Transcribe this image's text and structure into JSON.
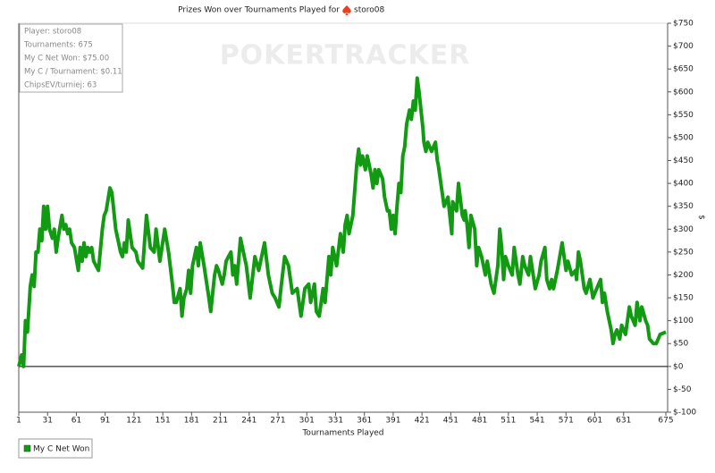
{
  "chart_data": {
    "type": "line",
    "title": "Prizes Won over Tournaments Played for",
    "player": "storo08",
    "watermark": "POKERTRACKER",
    "stats": [
      "Player: storo08",
      "Tournaments: 675",
      "My C Net Won: $75.00",
      "My C / Tournament: $0.11",
      "ChipsEV/turniej: 63"
    ],
    "x_label": "Tournaments Played",
    "y_label": "$",
    "x": [
      1,
      4,
      6,
      8,
      10,
      13,
      15,
      17,
      19,
      21,
      23,
      25,
      27,
      29,
      31,
      33,
      36,
      38,
      40,
      42,
      46,
      48,
      50,
      52,
      54,
      56,
      59,
      63,
      65,
      67,
      69,
      71,
      73,
      75,
      77,
      79,
      84,
      88,
      90,
      92,
      96,
      98,
      102,
      107,
      109,
      111,
      113,
      115,
      119,
      123,
      125,
      130,
      134,
      138,
      142,
      144,
      148,
      153,
      157,
      161,
      163,
      165,
      169,
      171,
      173,
      176,
      178,
      180,
      182,
      184,
      186,
      188,
      190,
      194,
      199,
      201,
      205,
      207,
      209,
      213,
      215,
      217,
      222,
      224,
      226,
      228,
      232,
      236,
      238,
      242,
      247,
      251,
      255,
      257,
      261,
      263,
      265,
      268,
      272,
      274,
      278,
      282,
      286,
      291,
      295,
      299,
      303,
      305,
      309,
      311,
      314,
      318,
      320,
      324,
      326,
      328,
      332,
      336,
      339,
      341,
      343,
      345,
      349,
      353,
      355,
      357,
      359,
      362,
      364,
      366,
      368,
      370,
      372,
      374,
      376,
      380,
      382,
      385,
      387,
      389,
      391,
      393,
      395,
      397,
      399,
      401,
      403,
      405,
      408,
      410,
      412,
      414,
      416,
      418,
      422,
      423,
      425,
      427,
      431,
      435,
      437,
      438,
      444,
      448,
      450,
      452,
      453,
      457,
      459,
      463,
      465,
      466,
      468,
      470,
      472,
      476,
      478,
      480,
      483,
      487,
      489,
      493,
      496,
      500,
      502,
      504,
      506,
      508,
      511,
      515,
      517,
      521,
      523,
      526,
      528,
      532,
      534,
      539,
      543,
      545,
      549,
      551,
      554,
      556,
      558,
      562,
      567,
      571,
      573,
      577,
      581,
      582,
      584,
      586,
      590,
      592,
      596,
      599,
      601,
      605,
      607,
      609,
      611,
      614,
      618,
      620,
      622,
      624,
      627,
      629,
      633,
      637,
      639,
      643,
      645,
      648,
      650,
      654,
      656,
      658,
      662,
      665,
      669,
      675
    ],
    "series": [
      {
        "name": "My C Net Won",
        "color": "#139a13",
        "values": [
          0,
          25,
          0,
          100,
          75,
          175,
          200,
          175,
          250,
          250,
          300,
          275,
          350,
          300,
          350,
          300,
          280,
          300,
          250,
          280,
          330,
          300,
          310,
          290,
          300,
          270,
          260,
          210,
          260,
          230,
          270,
          240,
          260,
          250,
          260,
          230,
          210,
          300,
          330,
          340,
          390,
          380,
          300,
          250,
          240,
          270,
          250,
          320,
          260,
          250,
          230,
          215,
          330,
          260,
          250,
          300,
          230,
          300,
          250,
          180,
          140,
          140,
          170,
          110,
          150,
          170,
          210,
          160,
          220,
          240,
          260,
          220,
          270,
          220,
          150,
          120,
          200,
          220,
          210,
          180,
          200,
          230,
          250,
          200,
          220,
          180,
          280,
          240,
          220,
          150,
          240,
          210,
          250,
          270,
          200,
          180,
          160,
          150,
          130,
          170,
          240,
          220,
          160,
          170,
          110,
          170,
          180,
          140,
          180,
          120,
          110,
          170,
          140,
          240,
          200,
          260,
          220,
          290,
          250,
          310,
          330,
          290,
          330,
          440,
          475,
          440,
          460,
          430,
          460,
          440,
          420,
          390,
          430,
          400,
          430,
          410,
          370,
          340,
          340,
          300,
          330,
          290,
          350,
          400,
          380,
          460,
          480,
          530,
          560,
          540,
          580,
          560,
          630,
          600,
          520,
          490,
          470,
          490,
          470,
          490,
          450,
          440,
          350,
          370,
          330,
          290,
          360,
          340,
          400,
          330,
          320,
          340,
          310,
          260,
          330,
          300,
          220,
          260,
          240,
          200,
          230,
          180,
          160,
          220,
          300,
          260,
          190,
          240,
          220,
          200,
          260,
          200,
          180,
          240,
          220,
          200,
          240,
          170,
          200,
          230,
          260,
          190,
          170,
          190,
          170,
          210,
          270,
          210,
          230,
          200,
          210,
          190,
          250,
          230,
          170,
          160,
          190,
          150,
          160,
          180,
          190,
          140,
          160,
          120,
          80,
          50,
          70,
          80,
          60,
          90,
          70,
          130,
          110,
          90,
          140,
          100,
          130,
          100,
          90,
          60,
          50,
          50,
          70,
          75
        ]
      }
    ],
    "xlim": [
      1,
      675
    ],
    "ylim": [
      -100,
      750
    ],
    "xticks": [
      1,
      31,
      61,
      91,
      121,
      151,
      181,
      211,
      241,
      271,
      301,
      331,
      361,
      391,
      421,
      451,
      481,
      511,
      541,
      571,
      601,
      631,
      675
    ],
    "yticks": [
      {
        "value": -100,
        "label": "$-100"
      },
      {
        "value": -50,
        "label": "$-50"
      },
      {
        "value": 0,
        "label": "$0"
      },
      {
        "value": 50,
        "label": "$50"
      },
      {
        "value": 100,
        "label": "$100"
      },
      {
        "value": 150,
        "label": "$150"
      },
      {
        "value": 200,
        "label": "$200"
      },
      {
        "value": 250,
        "label": "$250"
      },
      {
        "value": 300,
        "label": "$300"
      },
      {
        "value": 350,
        "label": "$350"
      },
      {
        "value": 400,
        "label": "$400"
      },
      {
        "value": 450,
        "label": "$450"
      },
      {
        "value": 500,
        "label": "$500"
      },
      {
        "value": 550,
        "label": "$550"
      },
      {
        "value": 600,
        "label": "$600"
      },
      {
        "value": 650,
        "label": "$650"
      },
      {
        "value": 700,
        "label": "$700"
      },
      {
        "value": 750,
        "label": "$750"
      }
    ]
  }
}
